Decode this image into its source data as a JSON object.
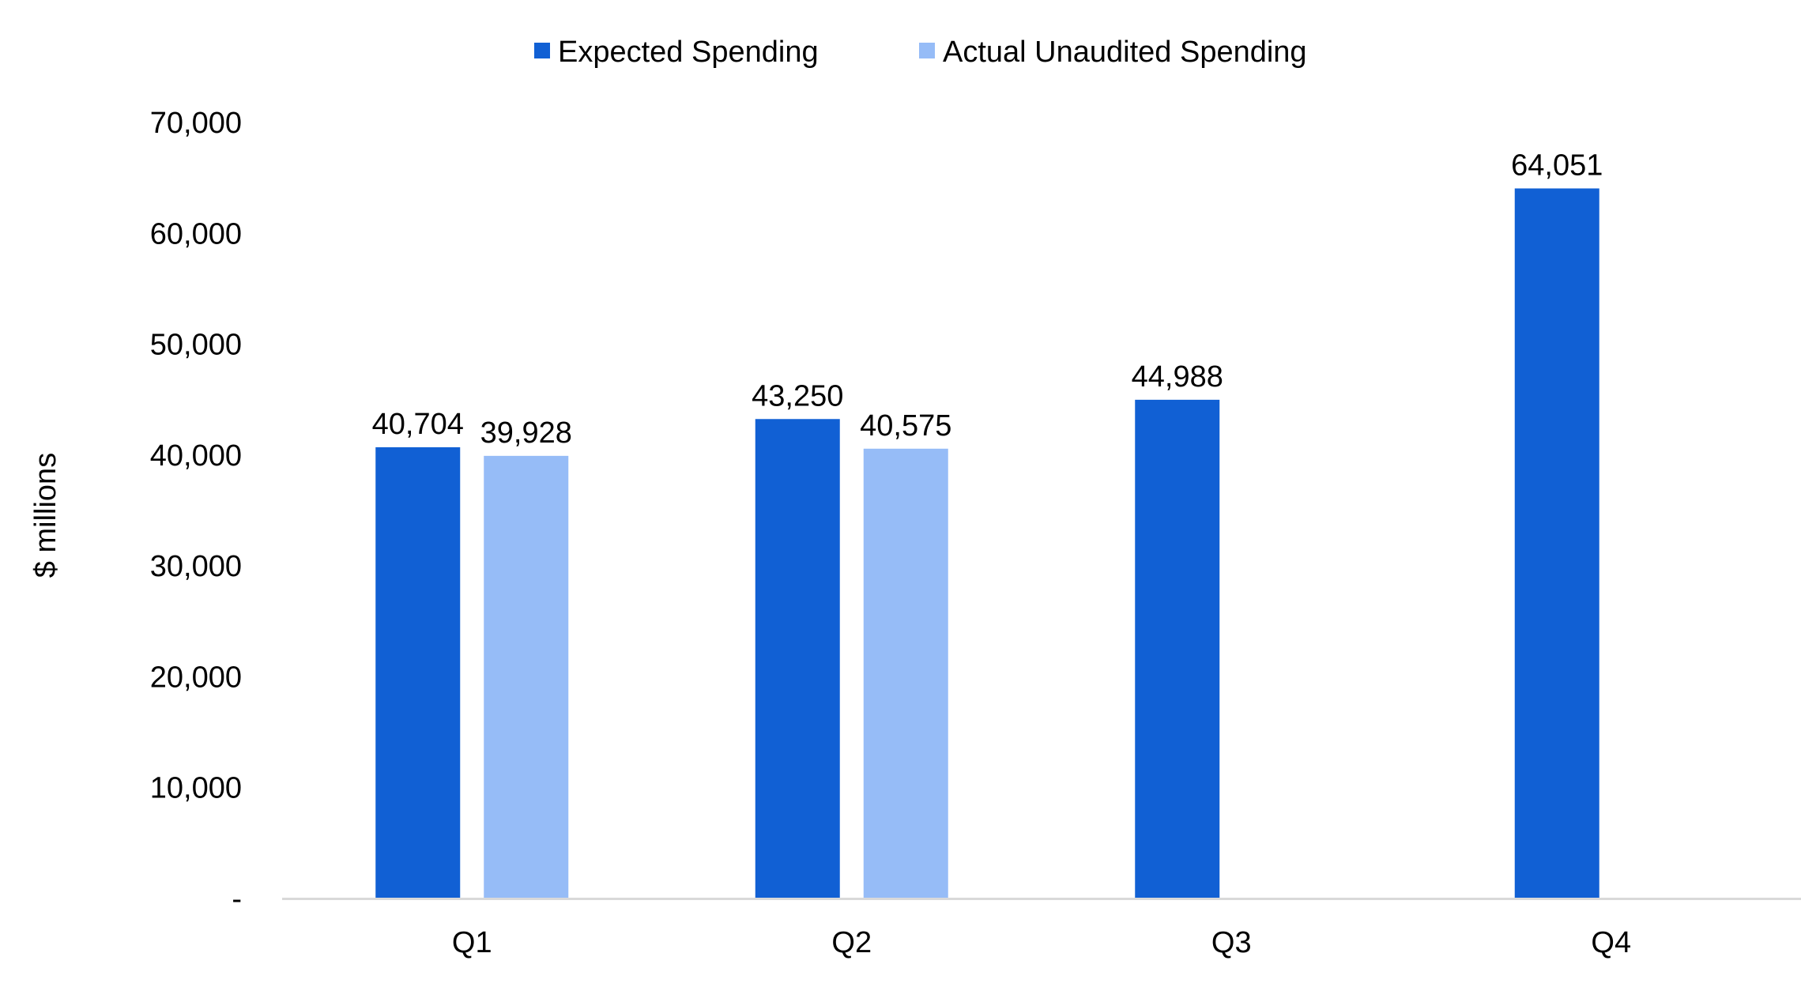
{
  "chart_data": {
    "type": "bar",
    "title": "",
    "xlabel": "",
    "ylabel": "$ millions",
    "categories": [
      "Q1",
      "Q2",
      "Q3",
      "Q4"
    ],
    "series": [
      {
        "name": "Expected Spending",
        "color": "#1160D4",
        "values": [
          40704,
          43250,
          44988,
          64051
        ],
        "labels": [
          "40,704",
          "43,250",
          "44,988",
          "64,051"
        ]
      },
      {
        "name": "Actual Unaudited Spending",
        "color": "#96BCF7",
        "values": [
          39928,
          40575,
          null,
          null
        ],
        "labels": [
          "39,928",
          "40,575",
          "",
          ""
        ]
      }
    ],
    "ylim": [
      0,
      70000
    ],
    "yticks": [
      0,
      10000,
      20000,
      30000,
      40000,
      50000,
      60000,
      70000
    ],
    "ytick_labels": [
      "-",
      "10,000",
      "20,000",
      "30,000",
      "40,000",
      "50,000",
      "60,000",
      "70,000"
    ],
    "grid": false,
    "legend_position": "top-center",
    "axis_color": "#D9D9D9"
  }
}
